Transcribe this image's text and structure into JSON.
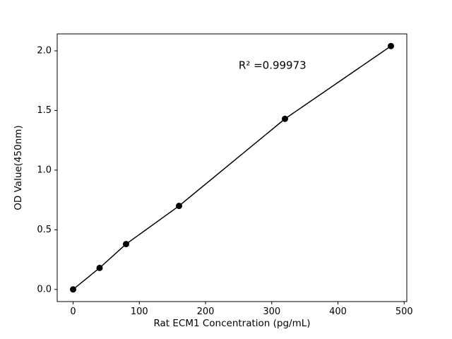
{
  "chart_data": {
    "type": "line",
    "title": "",
    "xlabel": "Rat ECM1 Concentration (pg/mL)",
    "ylabel": "OD Value(450nm)",
    "x": [
      0,
      40,
      80,
      160,
      320,
      480
    ],
    "y": [
      0.0,
      0.18,
      0.38,
      0.7,
      1.43,
      2.04
    ],
    "marker": "filled-circle",
    "line_color": "#000000",
    "marker_color": "#000000",
    "xticks": [
      0,
      100,
      200,
      300,
      400,
      500
    ],
    "xtick_labels": [
      "0",
      "100",
      "200",
      "300",
      "400",
      "500"
    ],
    "yticks": [
      0.0,
      0.5,
      1.0,
      1.5,
      2.0
    ],
    "ytick_labels": [
      "0.0",
      "0.5",
      "1.0",
      "1.5",
      "2.0"
    ],
    "xlim": [
      -24,
      504
    ],
    "ylim": [
      -0.102,
      2.142
    ],
    "grid": false,
    "legend": "none",
    "annotation": {
      "text": "R² =0.99973",
      "x": 250,
      "y": 1.85
    }
  }
}
